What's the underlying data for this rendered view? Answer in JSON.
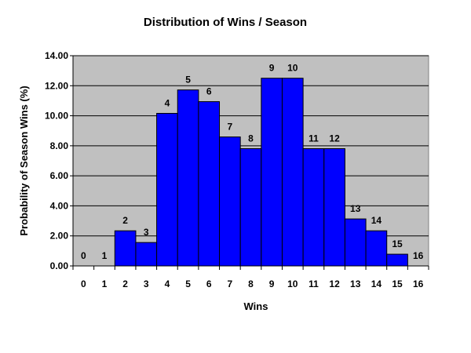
{
  "chart_data": {
    "type": "bar",
    "title": "Distribution of Wins / Season",
    "xlabel": "Wins",
    "ylabel": "Probability of Season Wins (%)",
    "categories": [
      "0",
      "1",
      "2",
      "3",
      "4",
      "5",
      "6",
      "7",
      "8",
      "9",
      "10",
      "11",
      "12",
      "13",
      "14",
      "15",
      "16"
    ],
    "values": [
      0,
      0,
      2.34,
      1.56,
      10.16,
      11.72,
      10.94,
      8.59,
      7.81,
      12.5,
      12.5,
      7.81,
      7.81,
      3.13,
      2.34,
      0.78,
      0
    ],
    "data_labels": [
      "0",
      "1",
      "2",
      "3",
      "4",
      "5",
      "6",
      "7",
      "8",
      "9",
      "10",
      "11",
      "12",
      "13",
      "14",
      "15",
      "16"
    ],
    "ylim": [
      0,
      14
    ],
    "yticks": [
      "0.00",
      "2.00",
      "4.00",
      "6.00",
      "8.00",
      "10.00",
      "12.00",
      "14.00"
    ],
    "ytick_values": [
      0,
      2,
      4,
      6,
      8,
      10,
      12,
      14
    ],
    "grid": true,
    "legend": "none",
    "colors": {
      "bar_fill": "#0000FF",
      "bar_stroke": "#000000",
      "plot_background": "#C0C0C0",
      "gridline": "#000000"
    }
  }
}
